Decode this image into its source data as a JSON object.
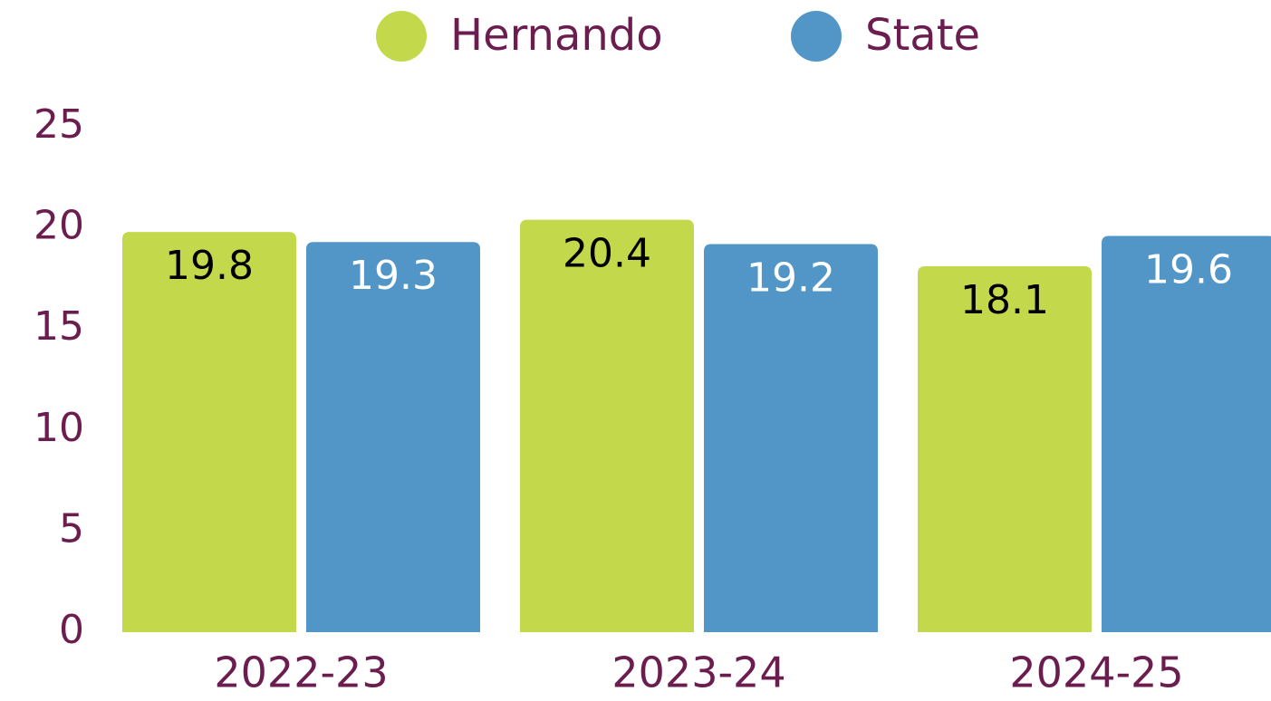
{
  "chart_data": {
    "type": "bar",
    "categories": [
      "2022-23",
      "2023-24",
      "2024-25"
    ],
    "series": [
      {
        "name": "Hernando",
        "color": "#c3d94b",
        "label_color": "#000000",
        "values": [
          19.8,
          20.4,
          18.1
        ]
      },
      {
        "name": "State",
        "color": "#5296c8",
        "label_color": "#ffffff",
        "values": [
          19.3,
          19.2,
          19.6
        ]
      }
    ],
    "ylim": [
      0,
      25
    ],
    "yticks": [
      0,
      5,
      10,
      15,
      20,
      25
    ],
    "legend": "top"
  }
}
